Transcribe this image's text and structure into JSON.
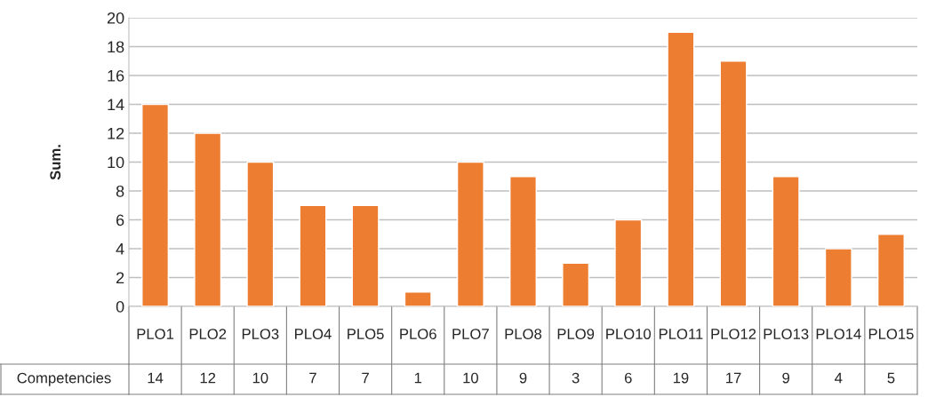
{
  "chart_data": {
    "type": "bar",
    "ylabel": "Sum.",
    "categories": [
      "PLO1",
      "PLO2",
      "PLO3",
      "PLO4",
      "PLO5",
      "PLO6",
      "PLO7",
      "PLO8",
      "PLO9",
      "PLO10",
      "PLO11",
      "PLO12",
      "PLO13",
      "PLO14",
      "PLO15"
    ],
    "series": [
      {
        "name": "Competencies",
        "color": "#ed7d31",
        "values": [
          14,
          12,
          10,
          7,
          7,
          1,
          10,
          9,
          3,
          6,
          19,
          17,
          9,
          4,
          5
        ]
      }
    ],
    "ylim": [
      0,
      20
    ],
    "yticks": [
      0,
      2,
      4,
      6,
      8,
      10,
      12,
      14,
      16,
      18,
      20
    ],
    "grid": "y",
    "data_labels": true
  }
}
